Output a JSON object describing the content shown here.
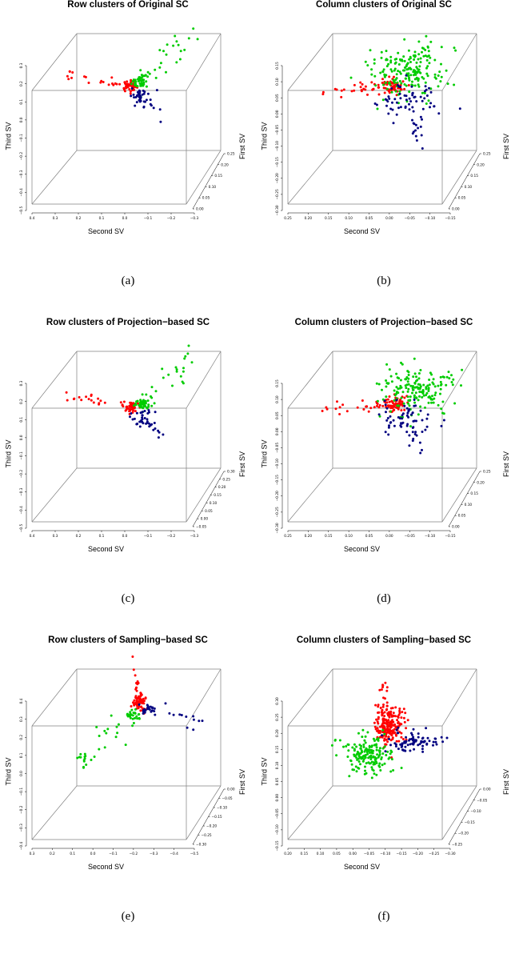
{
  "colors": {
    "cluster1": "#ff0000",
    "cluster2": "#00cc00",
    "cluster3": "#000080",
    "box": "#808080"
  },
  "chart_data": [
    {
      "type": "scatter",
      "subtype": "3d",
      "title": "Row clusters of Original SC",
      "caption": "(a)",
      "xlabel": "Second SV",
      "ylabel": "Third SV",
      "zlabel": "First SV",
      "xticks": [
        "0.4",
        "0.3",
        "0.2",
        "0.1",
        "0.0",
        "−0.1",
        "−0.2",
        "−0.3"
      ],
      "yticks": [
        "−0.5",
        "−0.4",
        "−0.3",
        "−0.2",
        "−0.1",
        "0.0",
        "0.1",
        "0.2",
        "0.3"
      ],
      "zticks": [
        "0.00",
        "0.05",
        "0.10",
        "0.15",
        "0.20",
        "0.25"
      ],
      "xlim": [
        0.4,
        -0.3
      ],
      "ylim": [
        -0.5,
        0.3
      ],
      "clusters": [
        {
          "color": "cluster1",
          "center": [
            0.03,
            0.07
          ],
          "spread": [
            0.015,
            0.015
          ],
          "n": 40,
          "arm": {
            "x": [
              0.03,
              0.27
            ],
            "y": [
              0.07,
              0.13
            ],
            "n": 20
          }
        },
        {
          "color": "cluster2",
          "center": [
            -0.01,
            0.09
          ],
          "spread": [
            0.015,
            0.015
          ],
          "n": 45,
          "arm": {
            "x": [
              -0.01,
              -0.22
            ],
            "y": [
              0.09,
              0.33
            ],
            "n": 28
          }
        },
        {
          "color": "cluster3",
          "center": [
            -0.01,
            0.02
          ],
          "spread": [
            0.02,
            0.025
          ],
          "n": 35,
          "arm": {
            "x": [
              -0.01,
              -0.09
            ],
            "y": [
              0.02,
              -0.08
            ],
            "n": 8
          }
        }
      ]
    },
    {
      "type": "scatter",
      "subtype": "3d",
      "title": "Column clusters of Original SC",
      "caption": "(b)",
      "xlabel": "Second SV",
      "ylabel": "Third SV",
      "zlabel": "First SV",
      "xticks": [
        "0.25",
        "0.20",
        "0.15",
        "0.10",
        "0.05",
        "0.00",
        "−0.05",
        "−0.10",
        "−0.15"
      ],
      "yticks": [
        "−0.30",
        "−0.25",
        "−0.20",
        "−0.15",
        "−0.10",
        "−0.05",
        "0.00",
        "0.05",
        "0.10",
        "0.15"
      ],
      "zticks": [
        "0.00",
        "0.05",
        "0.10",
        "0.15",
        "0.20",
        "0.25"
      ],
      "xlim": [
        0.25,
        -0.15
      ],
      "ylim": [
        -0.3,
        0.15
      ],
      "clusters": [
        {
          "color": "cluster1",
          "center": [
            0.02,
            0.02
          ],
          "spread": [
            0.012,
            0.012
          ],
          "n": 55,
          "arm": {
            "x": [
              0.02,
              0.17
            ],
            "y": [
              0.02,
              0.005
            ],
            "n": 30
          }
        },
        {
          "color": "cluster2",
          "center": [
            -0.015,
            0.06
          ],
          "spread": [
            0.04,
            0.04
          ],
          "n": 170,
          "arm": {
            "x": [
              -0.015,
              -0.06
            ],
            "y": [
              0.06,
              0.14
            ],
            "n": 20
          }
        },
        {
          "color": "cluster3",
          "center": [
            -0.01,
            -0.02
          ],
          "spread": [
            0.03,
            0.03
          ],
          "n": 60,
          "arm": {
            "x": [
              -0.01,
              -0.04
            ],
            "y": [
              -0.02,
              -0.13
            ],
            "n": 14
          }
        }
      ]
    },
    {
      "type": "scatter",
      "subtype": "3d",
      "title": "Row clusters of Projection−based SC",
      "caption": "(c)",
      "xlabel": "Second SV",
      "ylabel": "Third SV",
      "zlabel": "First SV",
      "xticks": [
        "0.4",
        "0.3",
        "0.2",
        "0.1",
        "0.0",
        "−0.1",
        "−0.2",
        "−0.3"
      ],
      "yticks": [
        "−0.5",
        "−0.4",
        "−0.3",
        "−0.2",
        "−0.1",
        "0.0",
        "0.1",
        "0.2",
        "0.3"
      ],
      "zticks": [
        "−0.05",
        "0.00",
        "0.05",
        "0.10",
        "0.15",
        "0.20",
        "0.25",
        "0.30"
      ],
      "xlim": [
        0.4,
        -0.3
      ],
      "ylim": [
        -0.5,
        0.3
      ],
      "clusters": [
        {
          "color": "cluster1",
          "center": [
            0.02,
            0.05
          ],
          "spread": [
            0.015,
            0.015
          ],
          "n": 40,
          "arm": {
            "x": [
              0.02,
              0.27
            ],
            "y": [
              0.05,
              0.12
            ],
            "n": 20
          }
        },
        {
          "color": "cluster2",
          "center": [
            -0.02,
            0.07
          ],
          "spread": [
            0.015,
            0.015
          ],
          "n": 45,
          "arm": {
            "x": [
              -0.02,
              -0.22
            ],
            "y": [
              0.07,
              0.32
            ],
            "n": 28
          }
        },
        {
          "color": "cluster3",
          "center": [
            -0.02,
            0.0
          ],
          "spread": [
            0.02,
            0.025
          ],
          "n": 35,
          "arm": {
            "x": [
              -0.02,
              -0.1
            ],
            "y": [
              0.0,
              -0.09
            ],
            "n": 8
          }
        }
      ]
    },
    {
      "type": "scatter",
      "subtype": "3d",
      "title": "Column clusters of Projection−based SC",
      "caption": "(d)",
      "xlabel": "Second SV",
      "ylabel": "Third SV",
      "zlabel": "First SV",
      "xticks": [
        "0.25",
        "0.20",
        "0.15",
        "0.10",
        "0.05",
        "0.00",
        "−0.05",
        "−0.10",
        "−0.15"
      ],
      "yticks": [
        "−0.30",
        "−0.25",
        "−0.20",
        "−0.15",
        "−0.10",
        "−0.05",
        "0.00",
        "0.05",
        "0.10",
        "0.15"
      ],
      "zticks": [
        "0.00",
        "0.05",
        "0.10",
        "0.15",
        "0.20",
        "0.25"
      ],
      "xlim": [
        0.25,
        -0.15
      ],
      "ylim": [
        -0.3,
        0.15
      ],
      "clusters": [
        {
          "color": "cluster1",
          "center": [
            0.01,
            0.02
          ],
          "spread": [
            0.012,
            0.012
          ],
          "n": 55,
          "arm": {
            "x": [
              0.01,
              0.16
            ],
            "y": [
              0.02,
              0.01
            ],
            "n": 30
          }
        },
        {
          "color": "cluster2",
          "center": [
            -0.03,
            0.06
          ],
          "spread": [
            0.04,
            0.035
          ],
          "n": 150,
          "arm": {
            "x": [
              -0.03,
              -0.14
            ],
            "y": [
              0.06,
              0.11
            ],
            "n": 20
          }
        },
        {
          "color": "cluster3",
          "center": [
            -0.01,
            -0.02
          ],
          "spread": [
            0.03,
            0.03
          ],
          "n": 55,
          "arm": {
            "x": [
              -0.01,
              -0.05
            ],
            "y": [
              -0.02,
              -0.13
            ],
            "n": 14
          }
        }
      ]
    },
    {
      "type": "scatter",
      "subtype": "3d",
      "title": "Row clusters of Sampling−based SC",
      "caption": "(e)",
      "xlabel": "Second SV",
      "ylabel": "Third SV",
      "zlabel": "First SV",
      "xticks": [
        "0.3",
        "0.2",
        "0.1",
        "0.0",
        "−0.1",
        "−0.2",
        "−0.3",
        "−0.4",
        "−0.5"
      ],
      "yticks": [
        "−0.4",
        "−0.3",
        "−0.2",
        "−0.1",
        "0.0",
        "0.1",
        "0.2",
        "0.3",
        "0.4"
      ],
      "zticks": [
        "−0.30",
        "−0.25",
        "−0.20",
        "−0.15",
        "−0.10",
        "−0.05",
        "0.00"
      ],
      "xlim": [
        0.3,
        -0.5
      ],
      "ylim": [
        -0.4,
        0.4
      ],
      "clusters": [
        {
          "color": "cluster1",
          "center": [
            -0.17,
            0.27
          ],
          "spread": [
            0.015,
            0.02
          ],
          "n": 60,
          "arm": {
            "x": [
              -0.17,
              -0.14
            ],
            "y": [
              0.27,
              0.44
            ],
            "n": 15
          }
        },
        {
          "color": "cluster2",
          "center": [
            -0.14,
            0.2
          ],
          "spread": [
            0.02,
            0.02
          ],
          "n": 25,
          "arm": {
            "x": [
              -0.14,
              0.1
            ],
            "y": [
              0.2,
              -0.04
            ],
            "n": 30
          }
        },
        {
          "color": "cluster3",
          "center": [
            -0.2,
            0.24
          ],
          "spread": [
            0.02,
            0.015
          ],
          "n": 20,
          "arm": {
            "x": [
              -0.2,
              -0.46
            ],
            "y": [
              0.24,
              0.16
            ],
            "n": 18
          }
        }
      ]
    },
    {
      "type": "scatter",
      "subtype": "3d",
      "title": "Column clusters of Sampling−based SC",
      "caption": "(f)",
      "xlabel": "Second SV",
      "ylabel": "Third SV",
      "zlabel": "First SV",
      "xticks": [
        "0.20",
        "0.15",
        "0.10",
        "0.05",
        "0.00",
        "−0.05",
        "−0.10",
        "−0.15",
        "−0.20",
        "−0.25",
        "−0.30"
      ],
      "yticks": [
        "−0.15",
        "−0.10",
        "−0.05",
        "0.00",
        "0.05",
        "0.10",
        "0.15",
        "0.20",
        "0.25",
        "0.30"
      ],
      "zticks": [
        "−0.25",
        "−0.20",
        "−0.15",
        "−0.10",
        "−0.05",
        "0.00"
      ],
      "xlim": [
        0.2,
        -0.3
      ],
      "ylim": [
        -0.15,
        0.3
      ],
      "clusters": [
        {
          "color": "cluster1",
          "center": [
            -0.075,
            0.16
          ],
          "spread": [
            0.02,
            0.03
          ],
          "n": 200,
          "arm": {
            "x": [
              -0.075,
              -0.06
            ],
            "y": [
              0.16,
              0.27
            ],
            "n": 20
          }
        },
        {
          "color": "cluster2",
          "center": [
            -0.02,
            0.07
          ],
          "spread": [
            0.03,
            0.03
          ],
          "n": 150,
          "arm": {
            "x": [
              -0.02,
              0.09
            ],
            "y": [
              0.07,
              0.11
            ],
            "n": 20
          }
        },
        {
          "color": "cluster3",
          "center": [
            -0.13,
            0.11
          ],
          "spread": [
            0.03,
            0.015
          ],
          "n": 60,
          "arm": {
            "x": [
              -0.13,
              -0.24
            ],
            "y": [
              0.11,
              0.12
            ],
            "n": 20
          }
        }
      ]
    }
  ]
}
